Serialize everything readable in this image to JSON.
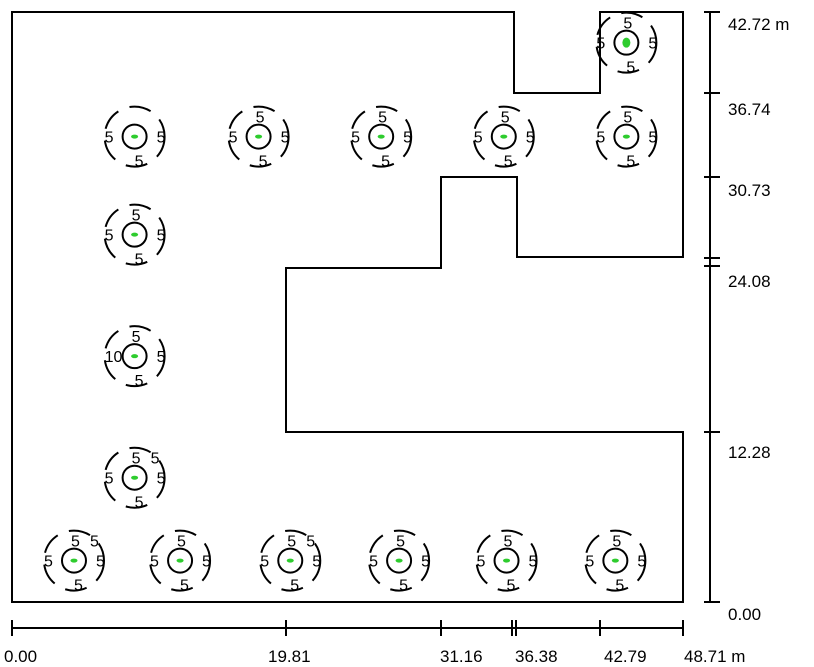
{
  "diagram": {
    "x_axis": {
      "tick_labels": [
        "0.00",
        "19.81",
        "31.16",
        "36.38",
        "42.79",
        "48.71 m"
      ],
      "tick_values": [
        0.0,
        19.81,
        31.16,
        36.38,
        42.79,
        48.71
      ]
    },
    "y_axis": {
      "tick_labels": [
        "0.00",
        "12.28",
        "24.08",
        "30.73",
        "36.74",
        "42.72 m"
      ],
      "tick_values": [
        0.0,
        12.28,
        24.08,
        30.73,
        36.74,
        42.72
      ]
    },
    "colors": {
      "outline": "#000000",
      "luminaire": "#2ecc2e"
    },
    "luminaires": [
      {
        "id": "l1",
        "x": 4.5,
        "y": 3.0,
        "labels": [
          "5",
          "5",
          "5",
          "5",
          "5"
        ]
      },
      {
        "id": "l2",
        "x": 12.2,
        "y": 3.0,
        "labels": [
          "5",
          "5",
          "5",
          "5"
        ]
      },
      {
        "id": "l3",
        "x": 20.2,
        "y": 3.0,
        "labels": [
          "5",
          "5",
          "5",
          "5",
          "5"
        ]
      },
      {
        "id": "l4",
        "x": 28.1,
        "y": 3.0,
        "labels": [
          "5",
          "5",
          "5",
          "5"
        ]
      },
      {
        "id": "l5",
        "x": 35.9,
        "y": 3.0,
        "labels": [
          "5",
          "5",
          "5",
          "5"
        ]
      },
      {
        "id": "l6",
        "x": 43.8,
        "y": 3.0,
        "labels": [
          "5",
          "5",
          "5",
          "5"
        ]
      },
      {
        "id": "l7",
        "x": 8.9,
        "y": 9.0,
        "labels": [
          "5",
          "5",
          "5",
          "5",
          "5"
        ]
      },
      {
        "id": "l8",
        "x": 8.9,
        "y": 17.8,
        "labels": [
          "10",
          "5",
          "5",
          "5"
        ]
      },
      {
        "id": "l9",
        "x": 8.9,
        "y": 26.6,
        "labels": [
          "5",
          "5",
          "5",
          "5"
        ]
      },
      {
        "id": "l10",
        "x": 8.9,
        "y": 33.7,
        "labels": [
          "5",
          "5",
          "5"
        ]
      },
      {
        "id": "l11",
        "x": 17.9,
        "y": 33.7,
        "labels": [
          "5",
          "5",
          "5",
          "5"
        ]
      },
      {
        "id": "l12",
        "x": 26.8,
        "y": 33.7,
        "labels": [
          "5",
          "5",
          "5",
          "5"
        ]
      },
      {
        "id": "l13",
        "x": 35.7,
        "y": 33.7,
        "labels": [
          "5",
          "5",
          "5",
          "5"
        ]
      },
      {
        "id": "l14",
        "x": 44.6,
        "y": 33.7,
        "labels": [
          "5",
          "5",
          "5",
          "5"
        ]
      },
      {
        "id": "l15",
        "x": 44.6,
        "y": 40.5,
        "labels": [
          "5",
          "5",
          "5",
          "5"
        ]
      }
    ]
  }
}
